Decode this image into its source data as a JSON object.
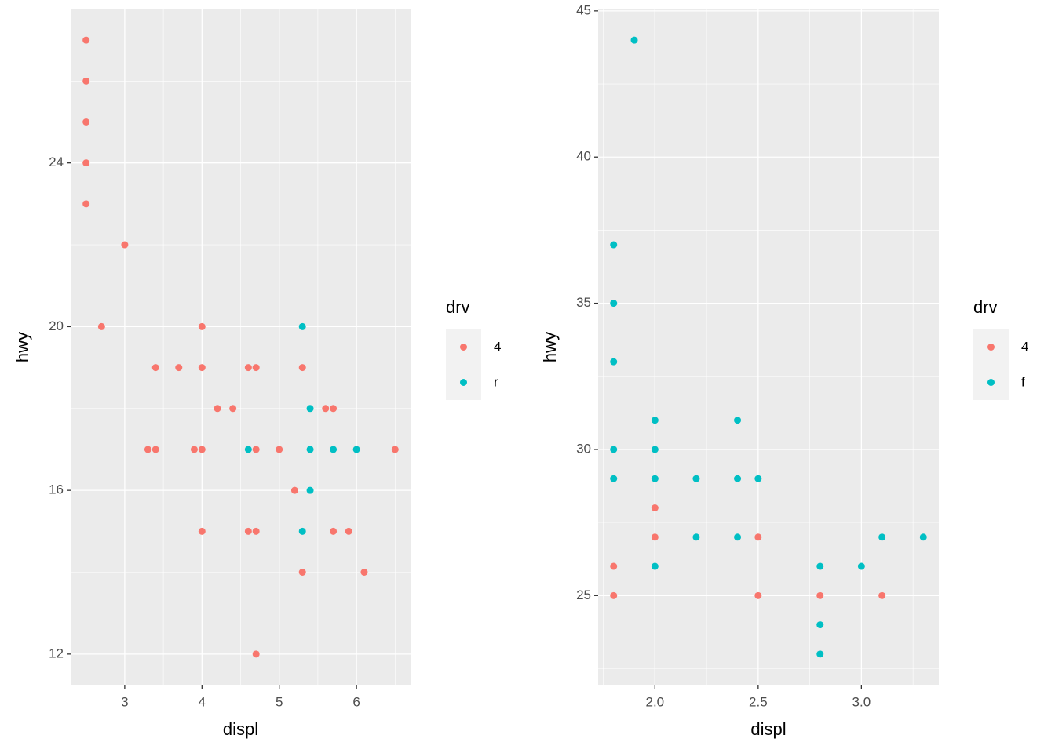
{
  "chart_data": [
    {
      "type": "scatter",
      "xlabel": "displ",
      "ylabel": "hwy",
      "legend_title": "drv",
      "xlim": [
        2.3,
        6.7
      ],
      "xticks": [
        3,
        4,
        5,
        6
      ],
      "ylim": [
        11.25,
        27.75
      ],
      "yticks": [
        12,
        16,
        20,
        24
      ],
      "grid": true,
      "series": [
        {
          "name": "4",
          "color": "#F8766D",
          "x": [
            2.5,
            2.5,
            2.5,
            2.5,
            2.5,
            3.0,
            2.7,
            4.0,
            3.4,
            3.7,
            4.0,
            4.6,
            4.7,
            5.3,
            4.2,
            4.4,
            5.6,
            5.7,
            3.3,
            3.4,
            3.9,
            4.0,
            4.7,
            5.0,
            6.5,
            5.2,
            4.0,
            4.6,
            4.7,
            5.7,
            5.9,
            5.3,
            6.1,
            4.7
          ],
          "values": [
            27,
            26,
            25,
            24,
            23,
            22,
            20,
            20,
            19,
            19,
            19,
            19,
            19,
            19,
            18,
            18,
            18,
            18,
            17,
            17,
            17,
            17,
            17,
            17,
            17,
            16,
            15,
            15,
            15,
            15,
            15,
            14,
            14,
            12
          ]
        },
        {
          "name": "r",
          "color": "#00BFC4",
          "x": [
            5.3,
            5.4,
            4.6,
            5.4,
            5.7,
            6.0,
            5.4,
            5.3
          ],
          "values": [
            20,
            18,
            17,
            17,
            17,
            17,
            16,
            15
          ]
        }
      ]
    },
    {
      "type": "scatter",
      "xlabel": "displ",
      "ylabel": "hwy",
      "legend_title": "drv",
      "xlim": [
        1.725,
        3.375
      ],
      "xticks": [
        {
          "value": 2,
          "label": "2.0"
        },
        2.5,
        {
          "value": 3,
          "label": "3.0"
        }
      ],
      "ylim": [
        21.95,
        45.05
      ],
      "yticks": [
        25,
        30,
        35,
        40,
        45
      ],
      "grid": true,
      "series": [
        {
          "name": "4",
          "color": "#F8766D",
          "x": [
            1.8,
            1.8,
            2.0,
            2.0,
            2.5,
            2.5,
            2.8,
            3.1
          ],
          "values": [
            26,
            25,
            28,
            27,
            27,
            25,
            25,
            25
          ]
        },
        {
          "name": "f",
          "color": "#00BFC4",
          "x": [
            1.9,
            1.8,
            1.8,
            1.8,
            1.8,
            1.8,
            2.0,
            2.0,
            2.0,
            2.0,
            2.2,
            2.2,
            2.4,
            2.4,
            2.4,
            2.5,
            2.8,
            2.8,
            2.8,
            3.0,
            3.1,
            3.3
          ],
          "values": [
            44,
            37,
            35,
            33,
            30,
            29,
            31,
            30,
            29,
            26,
            29,
            27,
            31,
            29,
            27,
            29,
            26,
            24,
            23,
            26,
            27,
            27
          ]
        }
      ]
    }
  ]
}
